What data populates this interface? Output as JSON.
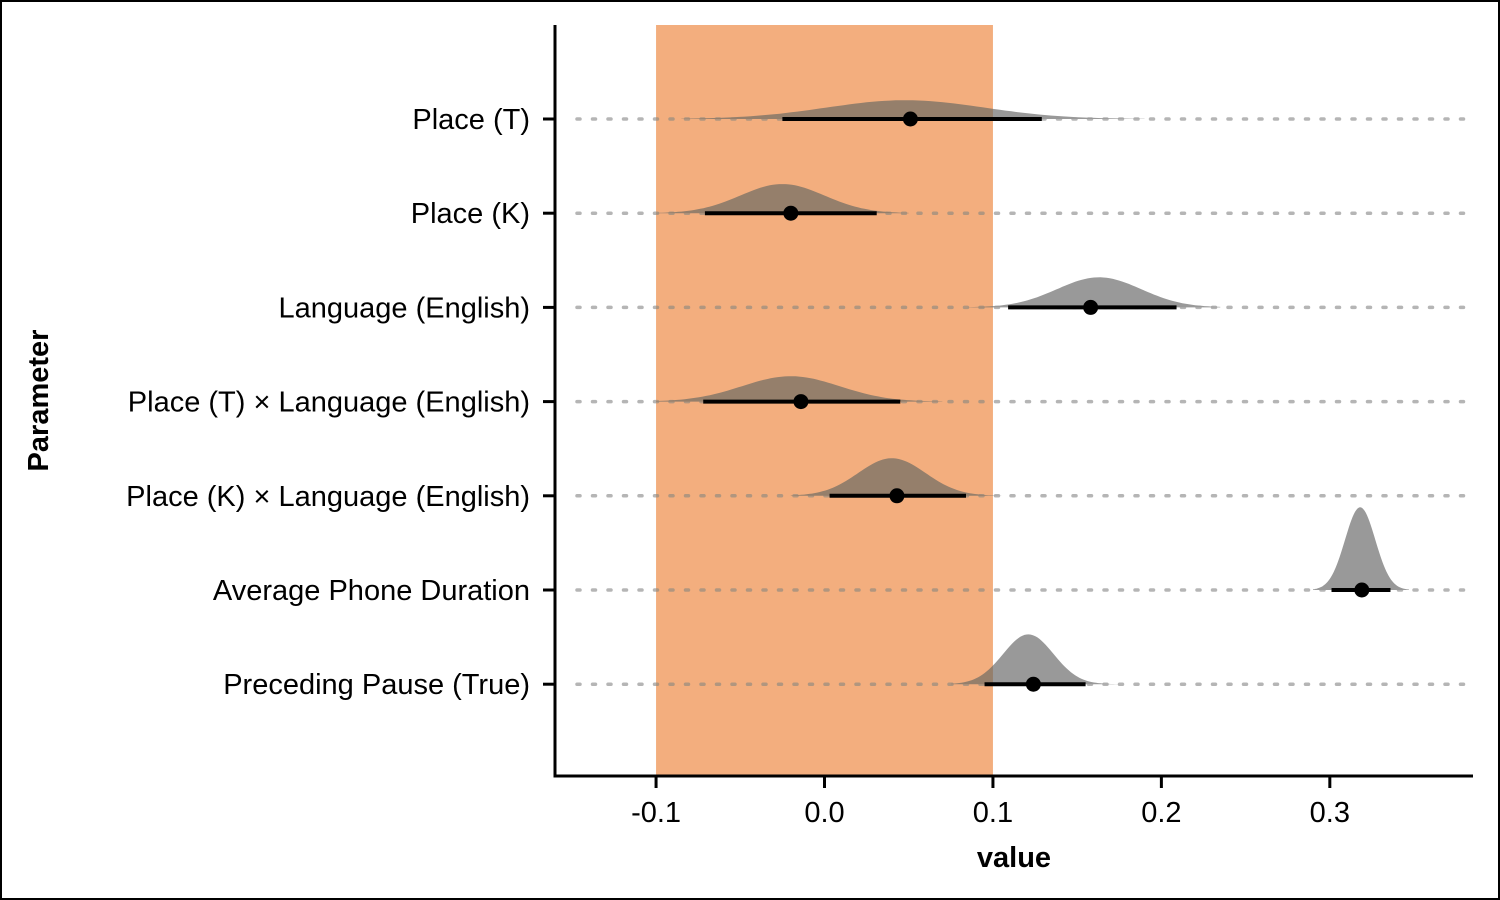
{
  "chart_data": {
    "type": "halfeye",
    "xlabel": "value",
    "ylabel": "Parameter",
    "xlim": [
      -0.16,
      0.385
    ],
    "xticks": [
      -0.1,
      0.0,
      0.1,
      0.2,
      0.3
    ],
    "xtick_labels": [
      "-0.1",
      "0.0",
      "0.1",
      "0.2",
      "0.3"
    ],
    "rope": [
      -0.1,
      0.1
    ],
    "grid": "dotted horizontal per parameter",
    "colors": {
      "rope": "#f9d3b3",
      "density": "#999999",
      "interval": "#000000",
      "grid": "#b5b5b5"
    },
    "parameters": [
      {
        "label": "Place (T)",
        "median": 0.051,
        "interval": [
          -0.025,
          0.129
        ],
        "range": [
          -0.085,
          0.19
        ],
        "mode": 0.048,
        "sd": 0.047,
        "height": 0.2
      },
      {
        "label": "Place (K)",
        "median": -0.02,
        "interval": [
          -0.071,
          0.031
        ],
        "range": [
          -0.1,
          0.05
        ],
        "mode": -0.025,
        "sd": 0.025,
        "height": 0.31
      },
      {
        "label": "Language (English)",
        "median": 0.158,
        "interval": [
          0.109,
          0.209
        ],
        "range": [
          0.085,
          0.235
        ],
        "mode": 0.163,
        "sd": 0.025,
        "height": 0.32
      },
      {
        "label": "Place (T) × Language (English)",
        "median": -0.014,
        "interval": [
          -0.072,
          0.045
        ],
        "range": [
          -0.1,
          0.07
        ],
        "mode": -0.02,
        "sd": 0.029,
        "height": 0.27
      },
      {
        "label": "Place (K) × Language (English)",
        "median": 0.043,
        "interval": [
          0.003,
          0.084
        ],
        "range": [
          -0.02,
          0.105
        ],
        "mode": 0.04,
        "sd": 0.02,
        "height": 0.4
      },
      {
        "label": "Average Phone Duration",
        "median": 0.319,
        "interval": [
          0.301,
          0.336
        ],
        "range": [
          0.29,
          0.347
        ],
        "mode": 0.318,
        "sd": 0.009,
        "height": 0.88
      },
      {
        "label": "Preceding Pause (True)",
        "median": 0.124,
        "interval": [
          0.095,
          0.155
        ],
        "range": [
          0.075,
          0.175
        ],
        "mode": 0.121,
        "sd": 0.015,
        "height": 0.53
      }
    ]
  }
}
